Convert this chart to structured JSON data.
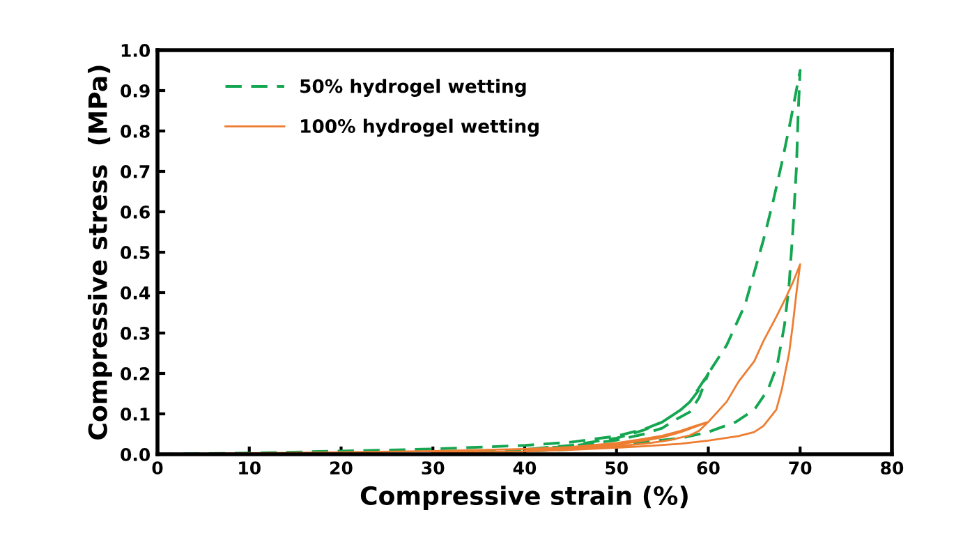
{
  "chart_data": {
    "type": "line",
    "xlabel": "Compressive strain (%)",
    "ylabel": "Compressive stress  (MPa)",
    "series": [
      {
        "name": "50% hydrogel wetting",
        "color": "#14a651",
        "line_style": "dashed",
        "x": [
          0,
          10,
          20,
          30,
          40,
          45,
          50,
          53,
          55,
          57,
          58,
          59,
          60,
          59,
          58,
          56,
          55,
          53,
          50,
          45,
          40,
          45,
          50,
          53,
          55,
          57,
          58,
          60,
          62,
          63,
          64,
          65,
          66,
          67,
          68,
          69,
          69.5,
          70,
          69.8,
          69.6,
          69.2,
          68.8,
          68.3,
          67.5,
          66.5,
          65,
          63,
          60,
          57,
          53,
          50,
          45,
          40,
          30
        ],
        "values": [
          0,
          0.003,
          0.008,
          0.013,
          0.022,
          0.03,
          0.045,
          0.062,
          0.08,
          0.11,
          0.13,
          0.16,
          0.2,
          0.14,
          0.105,
          0.08,
          0.065,
          0.05,
          0.035,
          0.02,
          0.012,
          0.022,
          0.04,
          0.06,
          0.08,
          0.11,
          0.13,
          0.2,
          0.27,
          0.32,
          0.37,
          0.45,
          0.53,
          0.62,
          0.72,
          0.83,
          0.89,
          0.95,
          0.85,
          0.71,
          0.55,
          0.42,
          0.32,
          0.22,
          0.16,
          0.11,
          0.08,
          0.055,
          0.04,
          0.03,
          0.022,
          0.012,
          0.008,
          0.005
        ]
      },
      {
        "name": "100% hydrogel wetting",
        "color": "#ed7d31",
        "line_style": "solid",
        "x": [
          0,
          20,
          30,
          40,
          45,
          50,
          53,
          55,
          57,
          58,
          59,
          60,
          59,
          58,
          56,
          55,
          53,
          50,
          45,
          40,
          45,
          50,
          53,
          55,
          57,
          60,
          62,
          63.3,
          65,
          66,
          67.4,
          68.5,
          69.3,
          70,
          69.6,
          69.2,
          68.8,
          68,
          67.4,
          66,
          65,
          63.3,
          60,
          57,
          53.1,
          50,
          45,
          40,
          30
        ],
        "values": [
          0,
          0.005,
          0.008,
          0.013,
          0.018,
          0.028,
          0.038,
          0.046,
          0.058,
          0.066,
          0.073,
          0.08,
          0.058,
          0.047,
          0.036,
          0.032,
          0.026,
          0.02,
          0.012,
          0.008,
          0.014,
          0.024,
          0.034,
          0.042,
          0.055,
          0.08,
          0.13,
          0.18,
          0.23,
          0.28,
          0.34,
          0.39,
          0.43,
          0.47,
          0.4,
          0.32,
          0.25,
          0.16,
          0.11,
          0.07,
          0.055,
          0.045,
          0.034,
          0.026,
          0.02,
          0.016,
          0.011,
          0.007,
          0.004
        ]
      }
    ],
    "xlim": [
      0,
      80
    ],
    "xticks": [
      0,
      10,
      20,
      30,
      40,
      50,
      60,
      70,
      80
    ],
    "ylim": [
      0,
      1.0
    ],
    "yticks": [
      {
        "value": 0,
        "label": "0.0"
      },
      {
        "value": 0.1,
        "label": "0.1"
      },
      {
        "value": 0.2,
        "label": "0.2"
      },
      {
        "value": 0.3,
        "label": "0.3"
      },
      {
        "value": 0.4,
        "label": "0.4"
      },
      {
        "value": 0.5,
        "label": "0.5"
      },
      {
        "value": 0.6,
        "label": "0.6"
      },
      {
        "value": 0.7,
        "label": "0.7"
      },
      {
        "value": 0.8,
        "label": "0.8"
      },
      {
        "value": 0.9,
        "label": "0.9"
      },
      {
        "value": 1.0,
        "label": "1.0"
      }
    ],
    "grid": false,
    "legend": "top left",
    "marker": "none"
  }
}
